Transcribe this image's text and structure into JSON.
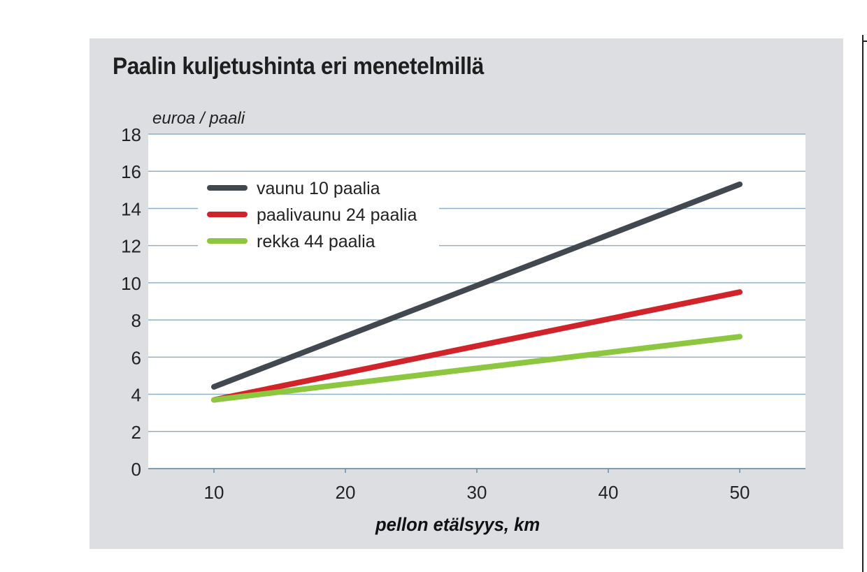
{
  "chart_data": {
    "type": "line",
    "title": "Paalin kuljetushinta eri menetelmillä",
    "ylabel": "euroa / paali",
    "xlabel": "pellon etälsyys, km",
    "xlim": [
      5,
      55
    ],
    "ylim": [
      0,
      18
    ],
    "x_ticks": [
      10,
      20,
      30,
      40,
      50
    ],
    "y_ticks": [
      0,
      2,
      4,
      6,
      8,
      10,
      12,
      14,
      16,
      18
    ],
    "grid": "horizontal",
    "legend_position": "top-left",
    "x": [
      10,
      50
    ],
    "series": [
      {
        "name": "vaunu 10 paalia",
        "color": "#414850",
        "values": [
          4.4,
          15.3
        ]
      },
      {
        "name": "paalivaunu 24 paalia",
        "color": "#d2232a",
        "values": [
          3.7,
          9.5
        ]
      },
      {
        "name": "rekka 44 paalia",
        "color": "#8dc63f",
        "values": [
          3.7,
          7.1
        ]
      }
    ]
  },
  "colors": {
    "panel_background": "#dcdee1",
    "plot_background": "#ffffff",
    "gridline": "#8fb0c6"
  }
}
